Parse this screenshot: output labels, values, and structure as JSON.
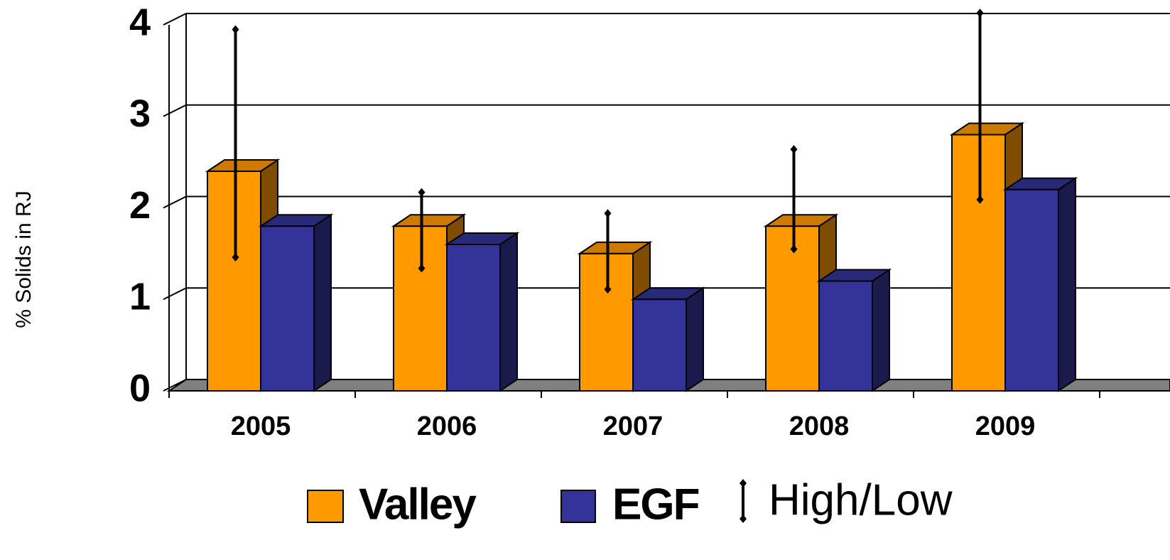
{
  "chart_data": {
    "type": "bar3d",
    "y_label": "% Solids in RJ",
    "categories": [
      "2005",
      "2006",
      "2007",
      "2008",
      "2009"
    ],
    "series": [
      {
        "name": "Valley",
        "color": "#ff9900",
        "values": [
          2.4,
          1.8,
          1.5,
          1.8,
          2.8
        ]
      },
      {
        "name": "EGF",
        "color": "#333399",
        "values": [
          1.8,
          1.6,
          1.0,
          1.2,
          2.2
        ]
      }
    ],
    "high_low": {
      "name": "High/Low",
      "high": [
        3.95,
        2.17,
        1.94,
        2.64,
        4.13
      ],
      "low": [
        1.46,
        1.34,
        1.11,
        1.55,
        2.09
      ]
    },
    "ylim": [
      0,
      4
    ],
    "yticks": [
      0,
      1,
      2,
      3,
      4
    ],
    "grid": true
  }
}
